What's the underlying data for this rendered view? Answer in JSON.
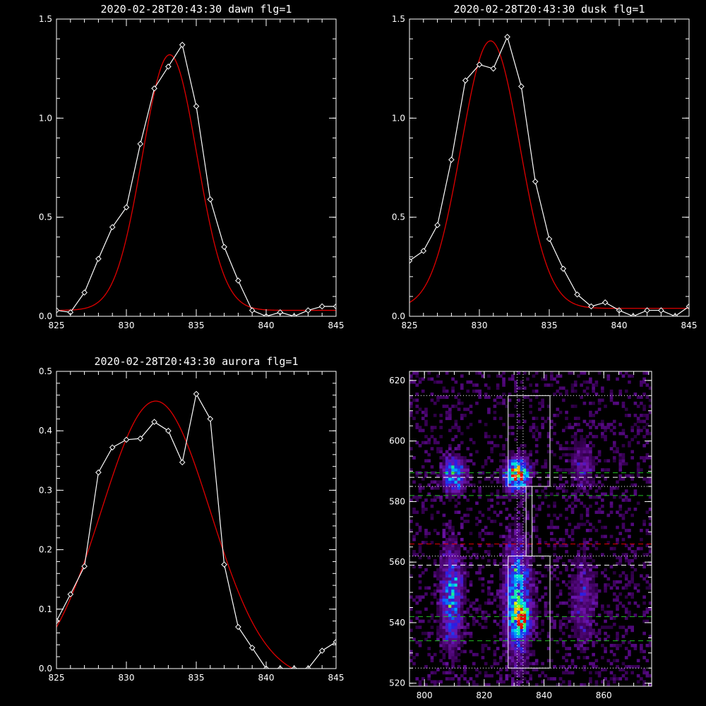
{
  "chart_data": [
    {
      "type": "line",
      "title": "2020-02-28T20:43:30 dawn flg=1",
      "xlim": [
        825,
        845
      ],
      "ylim": [
        0,
        1.5
      ],
      "xticks": [
        "825",
        "830",
        "835",
        "840",
        "845"
      ],
      "yticks": [
        "0.0",
        "0.5",
        "1.0",
        "1.5"
      ],
      "series": [
        {
          "kind": "observed",
          "color": "#ffffff",
          "x": [
            825,
            826,
            827,
            828,
            829,
            830,
            831,
            832,
            833,
            834,
            835,
            836,
            837,
            838,
            839,
            840,
            841,
            842,
            843,
            844,
            845
          ],
          "y": [
            0.03,
            0.02,
            0.12,
            0.29,
            0.45,
            0.55,
            0.87,
            1.15,
            1.26,
            1.37,
            1.06,
            0.59,
            0.35,
            0.18,
            0.03,
            0.0,
            0.02,
            0.0,
            0.03,
            0.05,
            0.05
          ]
        },
        {
          "kind": "fit",
          "color": "#e00000",
          "shape": "gaussian",
          "amp": 1.29,
          "center": 833.1,
          "sigma": 1.95,
          "offset": 0.03
        }
      ]
    },
    {
      "type": "line",
      "title": "2020-02-28T20:43:30 dusk flg=1",
      "xlim": [
        825,
        845
      ],
      "ylim": [
        0,
        1.5
      ],
      "xticks": [
        "825",
        "830",
        "835",
        "840",
        "845"
      ],
      "yticks": [
        "0.0",
        "0.5",
        "1.0",
        "1.5"
      ],
      "series": [
        {
          "kind": "observed",
          "color": "#ffffff",
          "x": [
            825,
            826,
            827,
            828,
            829,
            830,
            831,
            832,
            833,
            834,
            835,
            836,
            837,
            838,
            839,
            840,
            841,
            842,
            843,
            844,
            845
          ],
          "y": [
            0.28,
            0.33,
            0.46,
            0.79,
            1.19,
            1.27,
            1.25,
            1.41,
            1.16,
            0.68,
            0.39,
            0.24,
            0.11,
            0.05,
            0.07,
            0.03,
            0.0,
            0.03,
            0.03,
            0.0,
            0.05
          ]
        },
        {
          "kind": "fit",
          "color": "#e00000",
          "shape": "gaussian",
          "amp": 1.35,
          "center": 830.8,
          "sigma": 2.1,
          "offset": 0.04
        }
      ]
    },
    {
      "type": "line",
      "title": "2020-02-28T20:43:30 aurora flg=1",
      "xlim": [
        825,
        845
      ],
      "ylim": [
        0,
        0.5
      ],
      "xticks": [
        "825",
        "830",
        "835",
        "840",
        "845"
      ],
      "yticks": [
        "0.0",
        "0.1",
        "0.2",
        "0.3",
        "0.4",
        "0.5"
      ],
      "series": [
        {
          "kind": "observed",
          "color": "#ffffff",
          "x": [
            825,
            826,
            827,
            828,
            829,
            830,
            831,
            832,
            833,
            834,
            835,
            836,
            837,
            838,
            839,
            840,
            841,
            842,
            843,
            844,
            845
          ],
          "y": [
            0.08,
            0.125,
            0.172,
            0.33,
            0.372,
            0.385,
            0.387,
            0.415,
            0.4,
            0.347,
            0.462,
            0.42,
            0.175,
            0.07,
            0.035,
            0.0,
            0.0,
            0.0,
            0.0,
            0.03,
            0.045
          ]
        },
        {
          "kind": "fit",
          "color": "#e00000",
          "shape": "gaussian",
          "amp": 0.47,
          "center": 832.1,
          "sigma": 3.9,
          "offset": -0.02
        }
      ]
    },
    {
      "type": "heatmap",
      "title": "",
      "xlim": [
        795,
        876
      ],
      "ylim": [
        519,
        623
      ],
      "xticks": [
        "800",
        "820",
        "840",
        "860"
      ],
      "yticks": [
        "520",
        "540",
        "560",
        "580",
        "600",
        "620"
      ],
      "colormap": "rainbow",
      "blobs": [
        {
          "x": 810,
          "y": 589,
          "sx": 2.5,
          "sy": 4,
          "amp": 0.55
        },
        {
          "x": 831,
          "y": 589,
          "sx": 2.5,
          "sy": 3.5,
          "amp": 0.95
        },
        {
          "x": 809,
          "y": 548,
          "sx": 2.5,
          "sy": 12,
          "amp": 0.45
        },
        {
          "x": 831,
          "y": 548,
          "sx": 3,
          "sy": 13,
          "amp": 0.55
        },
        {
          "x": 833,
          "y": 541,
          "sx": 2,
          "sy": 3,
          "amp": 0.45
        },
        {
          "x": 853,
          "y": 548,
          "sx": 3,
          "sy": 11,
          "amp": 0.22
        },
        {
          "x": 853,
          "y": 592,
          "sx": 3,
          "sy": 6,
          "amp": 0.2
        }
      ],
      "boxes": [
        {
          "x": [
            828,
            842
          ],
          "y": [
            585,
            615
          ],
          "color": "#ffffff"
        },
        {
          "x": [
            834,
            836
          ],
          "y": [
            562,
            585
          ],
          "color": "#ffffff"
        },
        {
          "x": [
            828,
            842
          ],
          "y": [
            525,
            562
          ],
          "color": "#ffffff"
        }
      ],
      "hlines": [
        {
          "y": 615,
          "color": "#ffffff",
          "style": "dotted"
        },
        {
          "y": 525,
          "color": "#ffffff",
          "style": "dotted"
        },
        {
          "y": 589.5,
          "color": "#22c022",
          "style": "dashed"
        },
        {
          "y": 588,
          "color": "#ffffff",
          "style": "dashed"
        },
        {
          "y": 585,
          "color": "#ffffff",
          "style": "dotted"
        },
        {
          "y": 582,
          "color": "#22c022",
          "style": "dashed"
        },
        {
          "y": 566,
          "color": "#e00000",
          "style": "dashed"
        },
        {
          "y": 562,
          "color": "#ffffff",
          "style": "dotted"
        },
        {
          "y": 559,
          "color": "#ffffff",
          "style": "dashed"
        },
        {
          "y": 542,
          "color": "#22c022",
          "style": "dashed"
        },
        {
          "y": 534,
          "color": "#22c022",
          "style": "dashed"
        }
      ],
      "vlines": [
        {
          "x": 831,
          "color": "#ffffff",
          "style": "dotted"
        },
        {
          "x": 833,
          "color": "#ffffff",
          "style": "dotted"
        }
      ]
    }
  ]
}
